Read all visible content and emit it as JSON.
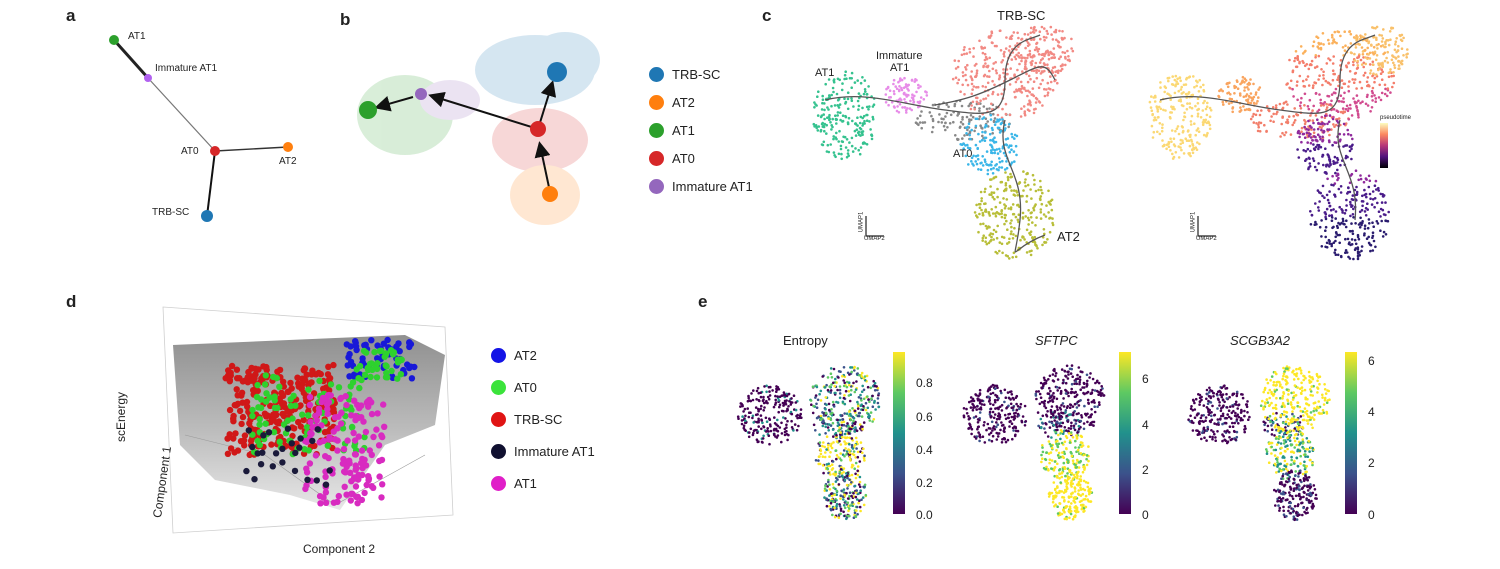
{
  "panels": {
    "a": {
      "label": "a",
      "nodes": [
        {
          "id": "AT1",
          "label": "AT1",
          "color": "#2ca02c"
        },
        {
          "id": "ImmatureAT1",
          "label": "Immature AT1",
          "color": "#b161f0"
        },
        {
          "id": "AT0",
          "label": "AT0",
          "color": "#d62728"
        },
        {
          "id": "AT2",
          "label": "AT2",
          "color": "#ff7f0e"
        },
        {
          "id": "TRBSC",
          "label": "TRB-SC",
          "color": "#1f77b4"
        }
      ]
    },
    "b": {
      "label": "b",
      "legend": [
        {
          "label": "TRB-SC",
          "color": "#1f77b4"
        },
        {
          "label": "AT2",
          "color": "#ff7f0e"
        },
        {
          "label": "AT1",
          "color": "#2ca02c"
        },
        {
          "label": "AT0",
          "color": "#d62728"
        },
        {
          "label": "Immature AT1",
          "color": "#9467bd"
        }
      ]
    },
    "c": {
      "label": "c",
      "title": "TRB-SC",
      "cluster_labels": [
        "AT1",
        "Immature",
        "AT1",
        "AT0",
        "AT2"
      ],
      "axis_small": [
        "UMAP1",
        "UMAP2"
      ],
      "pseudotime_label": "pseudotime"
    },
    "d": {
      "label": "d",
      "ylabel": "scEnergy",
      "xlabel": "Component 2",
      "zlabel": "Component 1",
      "legend": [
        {
          "label": "AT2",
          "color": "#1414e6"
        },
        {
          "label": "AT0",
          "color": "#3be33b"
        },
        {
          "label": "TRB-SC",
          "color": "#e01414"
        },
        {
          "label": "Immature AT1",
          "color": "#101030"
        },
        {
          "label": "AT1",
          "color": "#e01fc8"
        }
      ]
    },
    "e": {
      "label": "e",
      "plots": [
        {
          "title": "Entropy",
          "italic": false,
          "ticks": [
            "0.8",
            "0.6",
            "0.4",
            "0.2",
            "0.0"
          ]
        },
        {
          "title": "SFTPC",
          "italic": true,
          "ticks": [
            "6",
            "4",
            "2",
            "0"
          ]
        },
        {
          "title": "SCGB3A2",
          "italic": true,
          "ticks": [
            "6",
            "4",
            "2",
            "0"
          ]
        }
      ]
    }
  },
  "colors": {
    "viridis_low": "#440154",
    "viridis_mid": "#21918c",
    "viridis_high": "#fde725"
  }
}
